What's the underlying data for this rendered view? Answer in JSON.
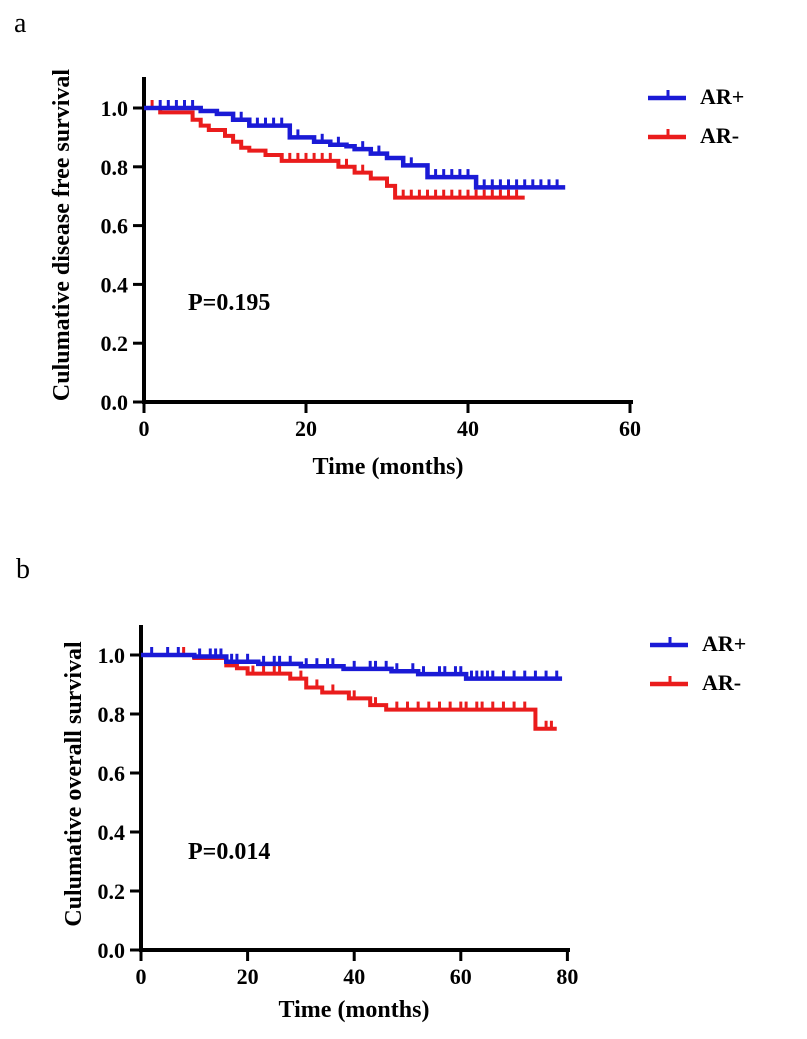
{
  "figure": {
    "background": "#ffffff",
    "description": "Two Kaplan-Meier survival plots comparing AR+ and AR- groups"
  },
  "colors": {
    "ar_positive": "#1a1ad6",
    "ar_negative": "#ea1c1c",
    "axis": "#000000",
    "text": "#000000",
    "background": "#ffffff"
  },
  "panels": [
    {
      "letter": "a"
    },
    {
      "letter": "b"
    }
  ],
  "chart_data": [
    {
      "type": "line",
      "subtype": "kaplan_meier_step",
      "panel": "a",
      "title": "",
      "xlabel": "Time (months)",
      "ylabel": "Culumative disease free survival",
      "annotation": "P=0.195",
      "xlim": [
        0,
        60
      ],
      "ylim": [
        0.0,
        1.0
      ],
      "x_ticks": [
        0,
        20,
        40,
        60
      ],
      "x_tick_labels": [
        "0",
        "20",
        "40",
        "60"
      ],
      "y_ticks": [
        0.0,
        0.2,
        0.4,
        0.6,
        0.8,
        1.0
      ],
      "y_tick_labels": [
        "0.0",
        "0.2",
        "0.4",
        "0.6",
        "0.8",
        "1.0"
      ],
      "grid": false,
      "legend_position": "upper-right-outside",
      "series": [
        {
          "name": "AR+",
          "color": "#1a1ad6",
          "end_time": 52,
          "steps": [
            [
              0,
              1.0
            ],
            [
              7,
              0.99
            ],
            [
              9,
              0.98
            ],
            [
              11,
              0.96
            ],
            [
              13,
              0.94
            ],
            [
              18,
              0.9
            ],
            [
              21,
              0.885
            ],
            [
              23,
              0.875
            ],
            [
              25,
              0.87
            ],
            [
              26,
              0.86
            ],
            [
              28,
              0.845
            ],
            [
              30,
              0.83
            ],
            [
              32,
              0.805
            ],
            [
              35,
              0.765
            ],
            [
              41,
              0.73
            ]
          ],
          "censor_times": [
            2,
            3,
            4,
            5,
            6,
            12,
            14,
            15,
            16,
            17,
            19,
            22,
            24,
            27,
            29,
            33,
            36,
            37,
            38,
            39,
            40,
            42,
            43,
            44,
            45,
            46,
            47,
            48,
            49,
            50,
            51
          ]
        },
        {
          "name": "AR-",
          "color": "#ea1c1c",
          "end_time": 47,
          "steps": [
            [
              0,
              1.0
            ],
            [
              2,
              0.985
            ],
            [
              6,
              0.96
            ],
            [
              7,
              0.94
            ],
            [
              8,
              0.925
            ],
            [
              10,
              0.905
            ],
            [
              11,
              0.885
            ],
            [
              12,
              0.865
            ],
            [
              13,
              0.855
            ],
            [
              15,
              0.84
            ],
            [
              17,
              0.82
            ],
            [
              24,
              0.8
            ],
            [
              26,
              0.78
            ],
            [
              28,
              0.76
            ],
            [
              30,
              0.735
            ],
            [
              31,
              0.695
            ]
          ],
          "censor_times": [
            1,
            18,
            19,
            20,
            21,
            22,
            23,
            25,
            27,
            32,
            33,
            34,
            35,
            36,
            37,
            38,
            39,
            40,
            41,
            42,
            43,
            44,
            45,
            46
          ]
        }
      ]
    },
    {
      "type": "line",
      "subtype": "kaplan_meier_step",
      "panel": "b",
      "title": "",
      "xlabel": "Time (months)",
      "ylabel": "Culumative overall survival",
      "annotation": "P=0.014",
      "xlim": [
        0,
        80
      ],
      "ylim": [
        0.0,
        1.0
      ],
      "x_ticks": [
        0,
        20,
        40,
        60,
        80
      ],
      "x_tick_labels": [
        "0",
        "20",
        "40",
        "60",
        "80"
      ],
      "y_ticks": [
        0.0,
        0.2,
        0.4,
        0.6,
        0.8,
        1.0
      ],
      "y_tick_labels": [
        "0.0",
        "0.2",
        "0.4",
        "0.6",
        "0.8",
        "1.0"
      ],
      "grid": false,
      "legend_position": "upper-right-outside",
      "series": [
        {
          "name": "AR+",
          "color": "#1a1ad6",
          "end_time": 79,
          "steps": [
            [
              0,
              1.0
            ],
            [
              10,
              0.995
            ],
            [
              16,
              0.977
            ],
            [
              22,
              0.97
            ],
            [
              30,
              0.962
            ],
            [
              38,
              0.953
            ],
            [
              47,
              0.945
            ],
            [
              52,
              0.935
            ],
            [
              61,
              0.92
            ]
          ],
          "censor_times": [
            2,
            5,
            7,
            11,
            13,
            14,
            15,
            17,
            18,
            20,
            23,
            25,
            26,
            28,
            31,
            33,
            35,
            36,
            40,
            43,
            44,
            46,
            48,
            51,
            53,
            56,
            57,
            59,
            60,
            62,
            63,
            64,
            65,
            66,
            68,
            70,
            72,
            74,
            76,
            78
          ]
        },
        {
          "name": "AR-",
          "color": "#ea1c1c",
          "end_time": 78,
          "steps": [
            [
              0,
              1.0
            ],
            [
              10,
              0.99
            ],
            [
              16,
              0.965
            ],
            [
              18,
              0.955
            ],
            [
              20,
              0.937
            ],
            [
              28,
              0.92
            ],
            [
              31,
              0.89
            ],
            [
              34,
              0.873
            ],
            [
              39,
              0.853
            ],
            [
              43,
              0.83
            ],
            [
              46,
              0.815
            ],
            [
              74,
              0.75
            ]
          ],
          "censor_times": [
            8,
            21,
            23,
            25,
            26,
            30,
            33,
            36,
            40,
            44,
            48,
            50,
            52,
            54,
            56,
            58,
            60,
            61,
            63,
            64,
            66,
            68,
            70,
            72,
            76,
            77
          ]
        }
      ]
    }
  ]
}
